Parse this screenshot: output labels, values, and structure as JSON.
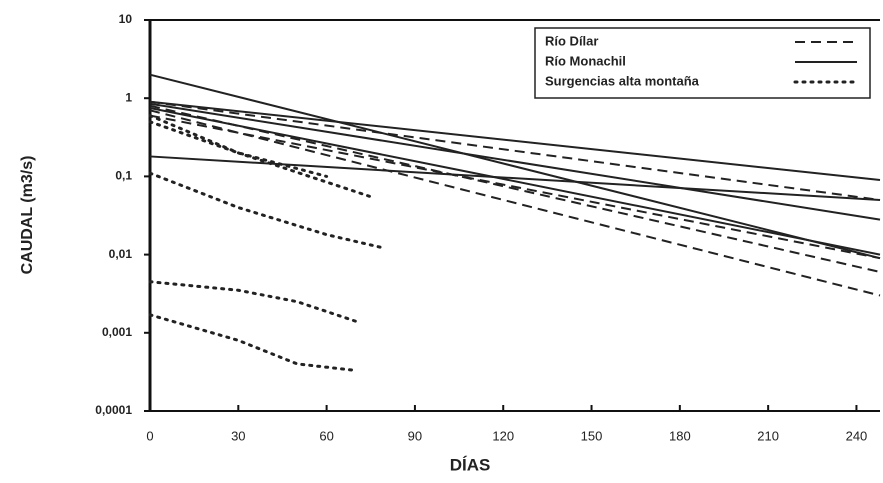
{
  "chart_data": {
    "type": "line",
    "x_label": "DÍAS",
    "y_label": "CAUDAL (m3/s)",
    "log_y": true,
    "xlim": [
      0,
      248
    ],
    "xticks": [
      0,
      30,
      60,
      90,
      120,
      150,
      180,
      210,
      240
    ],
    "ylim": [
      0.0001,
      10
    ],
    "yticks": [
      {
        "value": 0.0001,
        "label": "0,0001"
      },
      {
        "value": 0.001,
        "label": "0,001"
      },
      {
        "value": 0.01,
        "label": "0,01"
      },
      {
        "value": 0.1,
        "label": "0,1"
      },
      1,
      10
    ],
    "legend": "top-right",
    "series": [
      {
        "name": "Río Dílar",
        "color": "#222222",
        "dash": "dashed",
        "lines": [
          {
            "x": [
              0,
              248
            ],
            "values": [
              0.9,
              0.05
            ]
          },
          {
            "x": [
              0,
              248
            ],
            "values": [
              0.8,
              0.006
            ]
          },
          {
            "x": [
              0,
              248
            ],
            "values": [
              0.7,
              0.003
            ]
          },
          {
            "x": [
              0,
              248
            ],
            "values": [
              0.6,
              0.009
            ]
          }
        ]
      },
      {
        "name": "Río Monachil",
        "color": "#222222",
        "dash": "solid",
        "lines": [
          {
            "x": [
              0,
              248
            ],
            "values": [
              2,
              0.009
            ]
          },
          {
            "x": [
              0,
              248
            ],
            "values": [
              0.18,
              0.05
            ]
          },
          {
            "x": [
              0,
              248
            ],
            "values": [
              0.9,
              0.09
            ]
          },
          {
            "x": [
              0,
              248
            ],
            "values": [
              0.85,
              0.028
            ]
          },
          {
            "x": [
              0,
              248
            ],
            "values": [
              0.75,
              0.01
            ]
          }
        ]
      },
      {
        "name": "Surgencias alta montaña",
        "color": "#222222",
        "dash": "dotted",
        "lines": [
          {
            "x": [
              0,
              30,
              75
            ],
            "values": [
              0.6,
              0.2,
              0.055
            ]
          },
          {
            "x": [
              0,
              30,
              60
            ],
            "values": [
              0.5,
              0.2,
              0.1
            ]
          },
          {
            "x": [
              0,
              30,
              60,
              80
            ],
            "values": [
              0.11,
              0.04,
              0.018,
              0.012
            ]
          },
          {
            "x": [
              0,
              30,
              50,
              70
            ],
            "values": [
              0.0045,
              0.0035,
              0.0025,
              0.0014
            ]
          },
          {
            "x": [
              0,
              30,
              50,
              70
            ],
            "values": [
              0.0017,
              0.0008,
              0.0004,
              0.00033
            ]
          }
        ]
      }
    ]
  }
}
